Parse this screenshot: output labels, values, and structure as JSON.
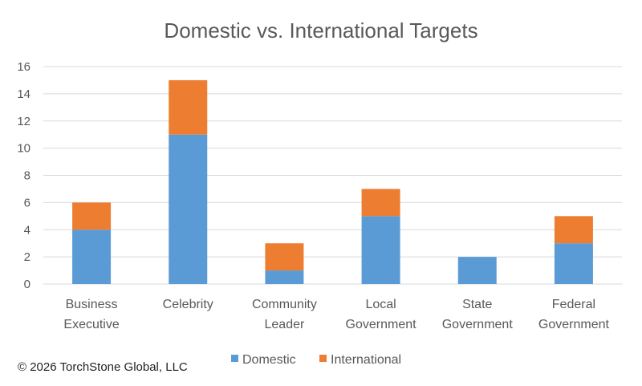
{
  "chart_data": {
    "type": "bar",
    "stacked": true,
    "title": "Domestic vs. International Targets",
    "xlabel": "",
    "ylabel": "",
    "categories": [
      [
        "Business",
        "Executive"
      ],
      [
        "Celebrity"
      ],
      [
        "Community",
        "Leader"
      ],
      [
        "Local",
        "Government"
      ],
      [
        "State",
        "Government"
      ],
      [
        "Federal",
        "Government"
      ]
    ],
    "series": [
      {
        "name": "Domestic",
        "color": "#5b9bd5",
        "values": [
          4,
          11,
          1,
          5,
          2,
          3
        ]
      },
      {
        "name": "International",
        "color": "#ed7d31",
        "values": [
          2,
          4,
          2,
          2,
          0,
          2
        ]
      }
    ],
    "ylim": [
      0,
      16
    ],
    "yticks": [
      0,
      2,
      4,
      6,
      8,
      10,
      12,
      14,
      16
    ],
    "grid": true,
    "legend_position": "bottom"
  },
  "footer": {
    "copyright": "© 2026 TorchStone Global, LLC"
  }
}
